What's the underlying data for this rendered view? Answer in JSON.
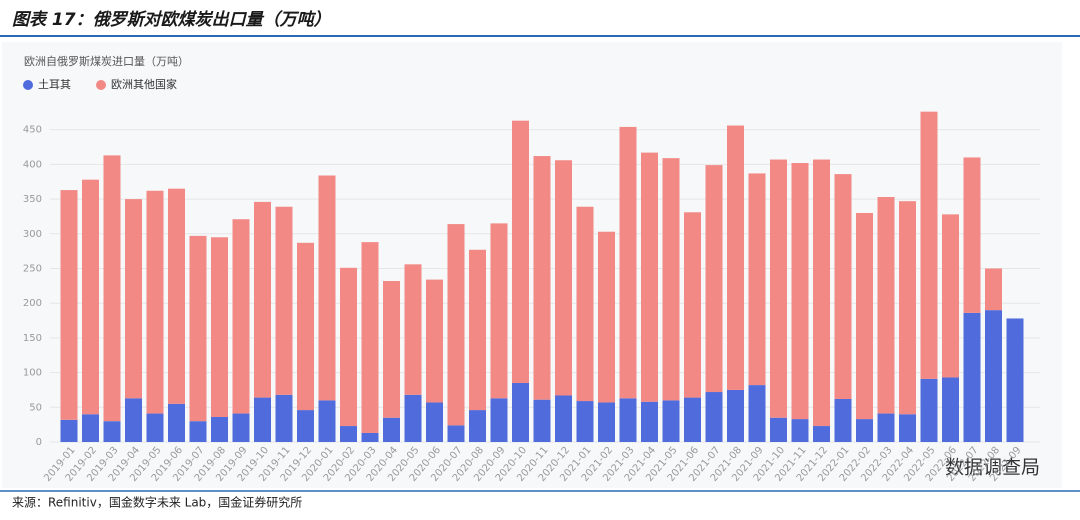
{
  "header": {
    "title": "图表 17：俄罗斯对欧煤炭出口量（万吨）"
  },
  "chart_data": {
    "type": "stacked-bar",
    "title": "欧洲自俄罗斯煤炭进口量（万吨）",
    "categories": [
      "2019-01",
      "2019-02",
      "2019-03",
      "2019-04",
      "2019-05",
      "2019-06",
      "2019-07",
      "2019-08",
      "2019-09",
      "2019-10",
      "2019-11",
      "2019-12",
      "2020-01",
      "2020-02",
      "2020-03",
      "2020-04",
      "2020-05",
      "2020-06",
      "2020-07",
      "2020-08",
      "2020-09",
      "2020-10",
      "2020-11",
      "2020-12",
      "2021-01",
      "2021-02",
      "2021-03",
      "2021-04",
      "2021-05",
      "2021-06",
      "2021-07",
      "2021-08",
      "2021-09",
      "2021-10",
      "2021-11",
      "2021-12",
      "2022-01",
      "2022-02",
      "2022-03",
      "2022-04",
      "2022-05",
      "2022-06",
      "2022-07",
      "2022-08",
      "2022-09"
    ],
    "series": [
      {
        "name": "土耳其",
        "color": "#4f6bdc",
        "values": [
          32,
          40,
          30,
          63,
          41,
          55,
          30,
          36,
          41,
          64,
          68,
          46,
          60,
          23,
          13,
          35,
          68,
          57,
          24,
          46,
          63,
          85,
          61,
          67,
          59,
          57,
          63,
          58,
          60,
          64,
          72,
          75,
          82,
          35,
          33,
          23,
          62,
          33,
          41,
          40,
          91,
          93,
          186,
          190,
          178
        ]
      },
      {
        "name": "欧洲其他国家",
        "color": "#f28985",
        "values": [
          331,
          338,
          383,
          287,
          321,
          310,
          267,
          259,
          280,
          282,
          271,
          241,
          324,
          228,
          275,
          197,
          188,
          177,
          290,
          231,
          252,
          378,
          351,
          339,
          280,
          246,
          391,
          359,
          349,
          267,
          327,
          381,
          305,
          372,
          369,
          384,
          324,
          297,
          312,
          307,
          385,
          235,
          224,
          60,
          0
        ]
      }
    ],
    "ylim": [
      0,
      500
    ],
    "yticks": [
      0,
      50,
      100,
      150,
      200,
      250,
      300,
      350,
      400,
      450
    ],
    "legend": "top-left"
  },
  "footer": {
    "source": "来源：Refinitiv，国金数字未来 Lab，国金证券研究所",
    "logo": "数据调查局"
  }
}
